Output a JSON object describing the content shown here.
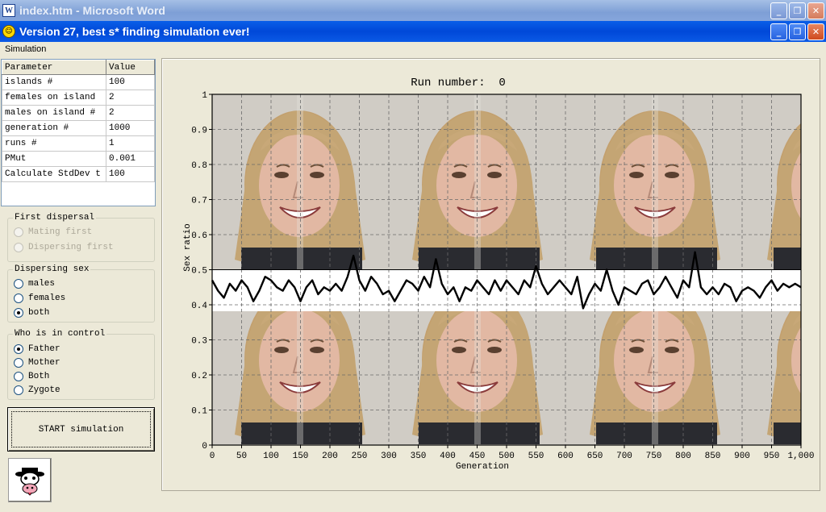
{
  "outer_window": {
    "title": "index.htm - Microsoft Word",
    "icon": "word-icon"
  },
  "app_window": {
    "title": "Version 27, best s* finding simulation ever!",
    "icon": "smiley-icon"
  },
  "window_buttons": {
    "minimize": "minimize-icon",
    "restore": "restore-icon",
    "close": "close-icon"
  },
  "menu": {
    "items": [
      "Simulation"
    ]
  },
  "parameters": {
    "headers": [
      "Parameter",
      "Value"
    ],
    "rows": [
      [
        "islands #",
        "100"
      ],
      [
        "females on island",
        "2"
      ],
      [
        "males on island #",
        "2"
      ],
      [
        "generation #",
        "1000"
      ],
      [
        "runs #",
        "1"
      ],
      [
        "PMut",
        "0.001"
      ],
      [
        "Calculate StdDev t",
        "100"
      ]
    ]
  },
  "first_dispersal": {
    "legend": "First dispersal",
    "options": [
      {
        "label": "Mating first",
        "checked": false,
        "disabled": true
      },
      {
        "label": "Dispersing first",
        "checked": false,
        "disabled": true
      }
    ]
  },
  "dispersing_sex": {
    "legend": "Dispersing sex",
    "options": [
      {
        "label": "males",
        "checked": false
      },
      {
        "label": "females",
        "checked": false
      },
      {
        "label": "both",
        "checked": true
      }
    ]
  },
  "who_in_control": {
    "legend": "Who is in control",
    "options": [
      {
        "label": "Father",
        "checked": true
      },
      {
        "label": "Mother",
        "checked": false
      },
      {
        "label": "Both",
        "checked": false
      },
      {
        "label": "Zygote",
        "checked": false
      }
    ]
  },
  "start_button": {
    "label": "START simulation"
  },
  "cow_button": {
    "icon": "cow-icon"
  },
  "chart_data": {
    "type": "line",
    "title": "Run number:  0",
    "xlabel": "Generation",
    "ylabel": "Sex ratio",
    "xlim": [
      0,
      1000
    ],
    "ylim": [
      0,
      1
    ],
    "x_ticks": [
      0,
      50,
      100,
      150,
      200,
      250,
      300,
      350,
      400,
      450,
      500,
      550,
      600,
      650,
      700,
      750,
      800,
      850,
      900,
      950,
      1000
    ],
    "x_tick_labels": [
      "0",
      "50",
      "100",
      "150",
      "200",
      "250",
      "300",
      "350",
      "400",
      "450",
      "500",
      "550",
      "600",
      "650",
      "700",
      "750",
      "800",
      "850",
      "900",
      "950",
      "1,000"
    ],
    "y_ticks": [
      0,
      0.1,
      0.2,
      0.3,
      0.4,
      0.5,
      0.6,
      0.7,
      0.8,
      0.9,
      1
    ],
    "y_tick_labels": [
      "0",
      "0.1",
      "0.2",
      "0.3",
      "0.4",
      "0.5",
      "0.6",
      "0.7",
      "0.8",
      "0.9",
      "1"
    ],
    "grid": true,
    "grid_style": "dashed",
    "reference_line": 0.5,
    "background": "tiled photograph of a smiling woman with long blond hair",
    "series": [
      {
        "color": "#000000",
        "x": [
          0,
          10,
          20,
          30,
          40,
          50,
          60,
          70,
          80,
          90,
          100,
          110,
          120,
          130,
          140,
          150,
          160,
          170,
          180,
          190,
          200,
          210,
          220,
          230,
          240,
          250,
          260,
          270,
          280,
          290,
          300,
          310,
          320,
          330,
          340,
          350,
          360,
          370,
          380,
          390,
          400,
          410,
          420,
          430,
          440,
          450,
          460,
          470,
          480,
          490,
          500,
          510,
          520,
          530,
          540,
          550,
          560,
          570,
          580,
          590,
          600,
          610,
          620,
          630,
          640,
          650,
          660,
          670,
          680,
          690,
          700,
          710,
          720,
          730,
          740,
          750,
          760,
          770,
          780,
          790,
          800,
          810,
          820,
          830,
          840,
          850,
          860,
          870,
          880,
          890,
          900,
          910,
          920,
          930,
          940,
          950,
          960,
          970,
          980,
          990,
          1000
        ],
        "y": [
          0.47,
          0.44,
          0.42,
          0.46,
          0.44,
          0.47,
          0.45,
          0.41,
          0.44,
          0.48,
          0.47,
          0.45,
          0.44,
          0.47,
          0.45,
          0.41,
          0.45,
          0.47,
          0.43,
          0.45,
          0.44,
          0.46,
          0.44,
          0.48,
          0.54,
          0.47,
          0.44,
          0.48,
          0.46,
          0.43,
          0.44,
          0.41,
          0.44,
          0.47,
          0.46,
          0.44,
          0.48,
          0.45,
          0.53,
          0.46,
          0.43,
          0.45,
          0.41,
          0.45,
          0.44,
          0.47,
          0.45,
          0.43,
          0.47,
          0.44,
          0.47,
          0.45,
          0.43,
          0.47,
          0.45,
          0.51,
          0.46,
          0.43,
          0.45,
          0.47,
          0.45,
          0.43,
          0.48,
          0.39,
          0.43,
          0.46,
          0.44,
          0.5,
          0.44,
          0.4,
          0.45,
          0.44,
          0.43,
          0.46,
          0.47,
          0.43,
          0.45,
          0.48,
          0.45,
          0.42,
          0.47,
          0.45,
          0.55,
          0.45,
          0.43,
          0.45,
          0.43,
          0.46,
          0.45,
          0.41,
          0.44,
          0.45,
          0.44,
          0.42,
          0.45,
          0.47,
          0.44,
          0.46,
          0.45,
          0.46,
          0.45
        ]
      }
    ]
  }
}
